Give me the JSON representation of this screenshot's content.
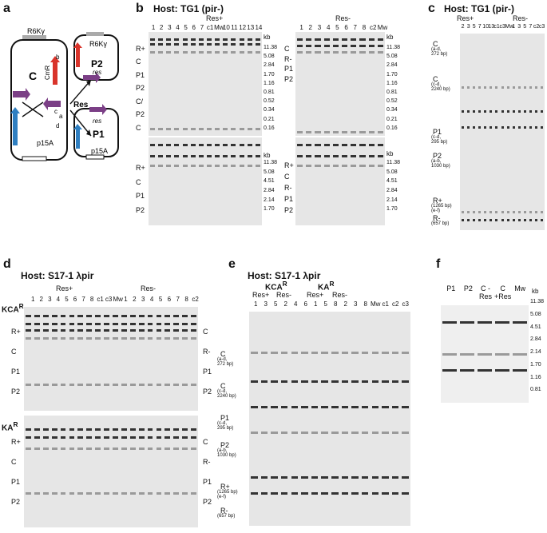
{
  "panels": {
    "a": {
      "letter": "a",
      "plasmid_C": {
        "name": "C",
        "origin": "R6Kγ",
        "origin2": "p15A",
        "marker1": "Cm",
        "marker1_sup": "R",
        "marker2": "Km",
        "marker2_sup": "R",
        "site1": "res",
        "site2": "res"
      },
      "arrow_label": "Res",
      "plasmid_P2": {
        "name": "P2",
        "origin": "R6Kγ",
        "marker": "Cm",
        "marker_sup": "R",
        "site": "res"
      },
      "plasmid_P1": {
        "name": "P1",
        "origin": "p15A",
        "marker": "Km",
        "marker_sup": "R",
        "site": "res"
      },
      "primers": [
        "a",
        "b",
        "c",
        "d"
      ]
    },
    "b": {
      "letter": "b",
      "host": "Host: TG1 (pir-)",
      "left_group": "Res+",
      "right_group": "Res-",
      "left_lanes": [
        "1",
        "2",
        "3",
        "4",
        "5",
        "6",
        "7",
        "c1",
        "Mw",
        "10",
        "11",
        "12",
        "13",
        "14"
      ],
      "right_lanes": [
        "1",
        "2",
        "3",
        "4",
        "5",
        "6",
        "7",
        "8",
        "c2",
        "Mw"
      ],
      "kb_unit": "kb",
      "top_kb": [
        "11.38",
        "5.08",
        "2.84",
        "1.70",
        "1.16",
        "0.81",
        "0.52",
        "0.34",
        "0.21",
        "0.16"
      ],
      "bottom_kb": [
        "11.38",
        "5.08",
        "4.51",
        "2.84",
        "2.14",
        "1.70"
      ],
      "top_rows": [
        "R+",
        "C",
        "P1",
        "P2",
        "C/",
        "P2",
        "C"
      ],
      "bottom_rows": [
        "R+",
        "C",
        "P1",
        "P2"
      ],
      "right_top_rows": [
        "C",
        "R-",
        "P1",
        "P2"
      ],
      "right_bottom_rows": [
        "R+",
        "C",
        "R-",
        "P1",
        "P2"
      ]
    },
    "c": {
      "letter": "c",
      "host": "Host: TG1 (pir-)",
      "group_plus": "Res+",
      "group_minus": "Res-",
      "lanes": [
        "2",
        "3",
        "5",
        "7",
        "10",
        "13",
        "c1",
        "c3",
        "Mw",
        "1",
        "3",
        "5",
        "7",
        "c2",
        "c3"
      ],
      "rows": [
        {
          "name": "C",
          "sub": "(a-d,",
          "sub2": "272 bp)"
        },
        {
          "name": "C",
          "sub": "(c-d,",
          "sub2": "2240 bp)"
        },
        {
          "name": "P1",
          "sub": "(c-d,",
          "sub2": "295 bp)"
        },
        {
          "name": "P2",
          "sub": "(a-b,",
          "sub2": "1030 bp)"
        },
        {
          "name": "R+",
          "sub": "(1265 bp)",
          "sub2": "(e-f)"
        },
        {
          "name": "R-",
          "sub": "(657 bp)",
          "sub2": ""
        }
      ]
    },
    "d": {
      "letter": "d",
      "host": "Host: S17-1 λpir",
      "group_plus": "Res+",
      "group_minus": "Res-",
      "lanes_left": [
        "1",
        "2",
        "3",
        "4",
        "5",
        "6",
        "7",
        "8",
        "c1",
        "c3",
        "Mw"
      ],
      "lanes_right": [
        "1",
        "2",
        "3",
        "4",
        "5",
        "6",
        "7",
        "8",
        "c2"
      ],
      "section1": "KCA",
      "section1_sup": "R",
      "section2": "KA",
      "section2_sup": "R",
      "rows_left": [
        "R+",
        "C",
        "P1",
        "P2"
      ],
      "rows_right": [
        "C",
        "R-",
        "P1",
        "P2"
      ]
    },
    "e": {
      "letter": "e",
      "host": "Host: S17-1 λpir",
      "section1": "KCA",
      "section1_sup": "R",
      "section2": "KA",
      "section2_sup": "R",
      "lanes": [
        "1",
        "3",
        "5",
        "2",
        "4",
        "6",
        "1",
        "5",
        "8",
        "2",
        "3",
        "8",
        "Mw",
        "c1",
        "c2",
        "c3"
      ],
      "groups": [
        "Res+",
        "Res-",
        "Res+",
        "Res-"
      ],
      "rows": [
        {
          "name": "C",
          "sub": "(a-d,",
          "sub2": "272 bp)"
        },
        {
          "name": "C",
          "sub": "(c-d,",
          "sub2": "2240 bp)"
        },
        {
          "name": "P1",
          "sub": "(c-d,",
          "sub2": "295 bp)"
        },
        {
          "name": "P2",
          "sub": "(a-b,",
          "sub2": "1030 bp)"
        },
        {
          "name": "R+",
          "sub": "(1265 bp)",
          "sub2": "(e-f)"
        },
        {
          "name": "R-",
          "sub": "(657 bp)",
          "sub2": ""
        }
      ]
    },
    "f": {
      "letter": "f",
      "lanes": [
        "P1",
        "P2",
        "C -Res",
        "C +Res",
        "Mw"
      ],
      "kb_unit": "kb",
      "kb": [
        "11.38",
        "5.08",
        "4.51",
        "2.84",
        "2.14",
        "1.70",
        "1.16",
        "0.81"
      ]
    }
  }
}
